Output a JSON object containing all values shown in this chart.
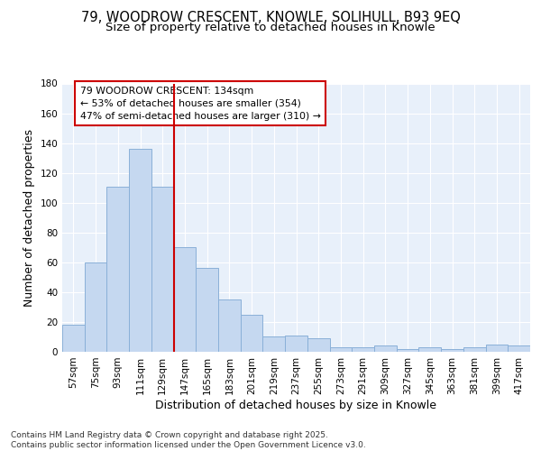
{
  "title_line1": "79, WOODROW CRESCENT, KNOWLE, SOLIHULL, B93 9EQ",
  "title_line2": "Size of property relative to detached houses in Knowle",
  "xlabel": "Distribution of detached houses by size in Knowle",
  "ylabel": "Number of detached properties",
  "categories": [
    "57sqm",
    "75sqm",
    "93sqm",
    "111sqm",
    "129sqm",
    "147sqm",
    "165sqm",
    "183sqm",
    "201sqm",
    "219sqm",
    "237sqm",
    "255sqm",
    "273sqm",
    "291sqm",
    "309sqm",
    "327sqm",
    "345sqm",
    "363sqm",
    "381sqm",
    "399sqm",
    "417sqm"
  ],
  "values": [
    18,
    60,
    111,
    136,
    111,
    70,
    56,
    35,
    25,
    10,
    11,
    9,
    3,
    3,
    4,
    2,
    3,
    2,
    3,
    5,
    4
  ],
  "bar_color": "#c5d8f0",
  "bar_edge_color": "#8ab0d8",
  "background_color": "#e8f0fa",
  "grid_color": "#ffffff",
  "vline_x": 4.5,
  "vline_color": "#cc0000",
  "annotation_text": "79 WOODROW CRESCENT: 134sqm\n← 53% of detached houses are smaller (354)\n47% of semi-detached houses are larger (310) →",
  "annotation_box_color": "#cc0000",
  "ylim": [
    0,
    180
  ],
  "yticks": [
    0,
    20,
    40,
    60,
    80,
    100,
    120,
    140,
    160,
    180
  ],
  "footer": "Contains HM Land Registry data © Crown copyright and database right 2025.\nContains public sector information licensed under the Open Government Licence v3.0.",
  "title_fontsize": 10.5,
  "subtitle_fontsize": 9.5,
  "label_fontsize": 9,
  "tick_fontsize": 7.5,
  "footer_fontsize": 6.5
}
